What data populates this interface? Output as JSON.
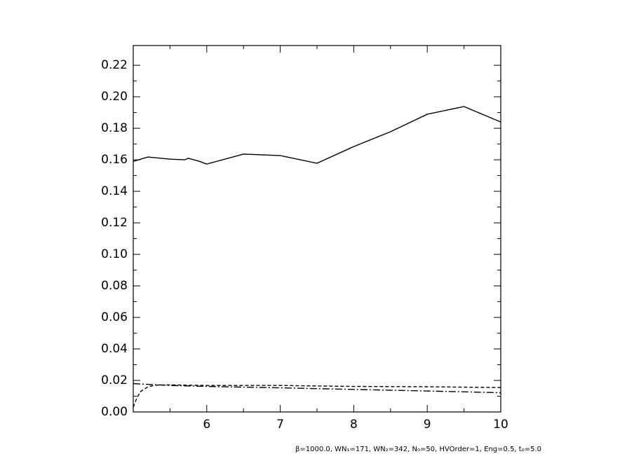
{
  "chart_data": {
    "type": "line",
    "xlim": [
      5,
      10
    ],
    "xticks": [
      6,
      7,
      8,
      9,
      10
    ],
    "ylim": [
      0,
      0.2325
    ],
    "yticks": [
      {
        "value": 0,
        "label": "0.00"
      },
      0.02,
      0.04,
      0.06,
      0.08,
      {
        "value": 0.1,
        "label": "0.10"
      },
      0.12,
      0.14,
      0.16,
      0.18,
      {
        "value": 0.2,
        "label": "0.20"
      },
      0.22
    ],
    "series": [
      {
        "color": "#000000",
        "style": "solid",
        "x": [
          5,
          5.2,
          5.5,
          5.7,
          5.75,
          5.9,
          6,
          6.5,
          7,
          7.5,
          8,
          8.5,
          9,
          9.5,
          10
        ],
        "values": [
          0.159,
          0.1618,
          0.1604,
          0.16,
          0.161,
          0.159,
          0.1573,
          0.1636,
          0.1627,
          0.1578,
          0.1684,
          0.1778,
          0.1889,
          0.1938,
          0.184
        ]
      },
      {
        "color": "#000000",
        "style": "dashed",
        "x": [
          5,
          5.05,
          5.1,
          5.2,
          5.3,
          5.5,
          6,
          7,
          8,
          9,
          10
        ],
        "values": [
          0.003,
          0.009,
          0.013,
          0.016,
          0.017,
          0.0172,
          0.0168,
          0.0168,
          0.0162,
          0.016,
          0.0155
        ]
      },
      {
        "color": "#000000",
        "style": "dashdot",
        "x": [
          5,
          5.5,
          6,
          7,
          8,
          9,
          10
        ],
        "values": [
          0.018,
          0.0168,
          0.0162,
          0.0153,
          0.0143,
          0.0133,
          0.0122
        ]
      }
    ],
    "footnote": "β=1000.0, WN₁=171, WN₂=342, N₀=50, HVOrder=1, Eng=0.5, t₀=5.0"
  }
}
